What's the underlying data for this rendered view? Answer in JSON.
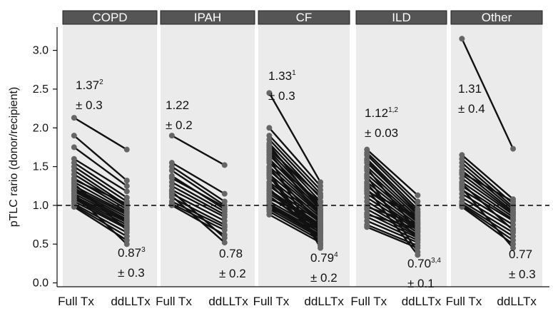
{
  "chart_data": {
    "type": "line",
    "ylabel": "pTLC rario (donor/recipient)",
    "ylim": [
      -0.05,
      3.3
    ],
    "yticks": [
      "0.0",
      "0.5",
      "1.0",
      "1.5",
      "2.0",
      "2.5",
      "3.0"
    ],
    "reference_line": 1.0,
    "categories": [
      "Full Tx",
      "ddLLTx"
    ],
    "colors": {
      "panel_header": "#555555",
      "panel_bg": "#ebebeb",
      "line": "#111111",
      "point": "#666666"
    },
    "panels": [
      {
        "title": "COPD",
        "left_label": {
          "value": "1.37",
          "sup": "2",
          "sd": "± 0.3"
        },
        "right_label": {
          "value": "0.87",
          "sup": "3",
          "sd": "± 0.3"
        },
        "pairs": [
          [
            2.13,
            1.72
          ],
          [
            1.9,
            1.32
          ],
          [
            1.75,
            1.25
          ],
          [
            1.6,
            1.18
          ],
          [
            1.55,
            1.1
          ],
          [
            1.5,
            1.05
          ],
          [
            1.45,
            1.0
          ],
          [
            1.4,
            0.98
          ],
          [
            1.35,
            0.95
          ],
          [
            1.3,
            0.92
          ],
          [
            1.25,
            0.9
          ],
          [
            1.22,
            0.88
          ],
          [
            1.2,
            0.85
          ],
          [
            1.18,
            0.82
          ],
          [
            1.15,
            0.8
          ],
          [
            1.12,
            0.78
          ],
          [
            1.1,
            0.75
          ],
          [
            1.08,
            0.72
          ],
          [
            1.05,
            0.7
          ],
          [
            1.02,
            0.65
          ],
          [
            1.0,
            0.6
          ],
          [
            0.98,
            0.55
          ],
          [
            1.15,
            0.5
          ],
          [
            1.28,
            0.68
          ],
          [
            1.33,
            1.02
          ]
        ]
      },
      {
        "title": "IPAH",
        "left_label": {
          "value": "1.22",
          "sup": "",
          "sd": "± 0.2"
        },
        "right_label": {
          "value": "0.78",
          "sup": "",
          "sd": "± 0.2"
        },
        "pairs": [
          [
            1.9,
            1.52
          ],
          [
            1.55,
            1.15
          ],
          [
            1.5,
            1.05
          ],
          [
            1.45,
            1.0
          ],
          [
            1.38,
            0.95
          ],
          [
            1.3,
            0.92
          ],
          [
            1.25,
            0.88
          ],
          [
            1.2,
            0.85
          ],
          [
            1.15,
            0.8
          ],
          [
            1.1,
            0.75
          ],
          [
            1.05,
            0.72
          ],
          [
            1.02,
            0.68
          ],
          [
            1.0,
            0.62
          ],
          [
            1.18,
            0.58
          ],
          [
            1.12,
            0.52
          ],
          [
            1.35,
            0.98
          ]
        ]
      },
      {
        "title": "CF",
        "left_label": {
          "value": "1.33",
          "sup": "1",
          "sd": "± 0.3"
        },
        "right_label": {
          "value": "0.79",
          "sup": "4",
          "sd": "± 0.2"
        },
        "pairs": [
          [
            2.45,
            1.3
          ],
          [
            2.0,
            1.25
          ],
          [
            1.9,
            1.2
          ],
          [
            1.85,
            1.15
          ],
          [
            1.8,
            1.1
          ],
          [
            1.75,
            1.05
          ],
          [
            1.7,
            1.0
          ],
          [
            1.65,
            0.98
          ],
          [
            1.6,
            0.95
          ],
          [
            1.55,
            0.92
          ],
          [
            1.5,
            0.9
          ],
          [
            1.45,
            0.88
          ],
          [
            1.4,
            0.85
          ],
          [
            1.35,
            0.82
          ],
          [
            1.3,
            0.8
          ],
          [
            1.25,
            0.78
          ],
          [
            1.2,
            0.75
          ],
          [
            1.15,
            0.72
          ],
          [
            1.1,
            0.7
          ],
          [
            1.05,
            0.68
          ],
          [
            1.02,
            0.65
          ],
          [
            1.0,
            0.62
          ],
          [
            0.98,
            0.6
          ],
          [
            0.95,
            0.58
          ],
          [
            0.92,
            0.55
          ],
          [
            0.88,
            0.52
          ],
          [
            1.42,
            0.5
          ],
          [
            1.38,
            0.48
          ],
          [
            1.62,
            0.45
          ],
          [
            1.72,
            1.12
          ],
          [
            1.68,
            0.86
          ],
          [
            1.48,
            0.76
          ],
          [
            1.28,
            0.66
          ],
          [
            1.18,
            0.74
          ],
          [
            1.08,
            0.84
          ],
          [
            1.78,
            0.94
          ],
          [
            1.58,
            1.04
          ],
          [
            1.22,
            0.56
          ],
          [
            1.12,
            0.64
          ],
          [
            0.96,
            0.7
          ]
        ]
      },
      {
        "title": "ILD",
        "left_label": {
          "value": "1.12",
          "sup": "1,2",
          "sd": "± 0.03"
        },
        "right_label": {
          "value": "0.70",
          "sup": "3,4",
          "sd": "± 0.1"
        },
        "pairs": [
          [
            1.72,
            1.13
          ],
          [
            1.68,
            1.05
          ],
          [
            1.65,
            1.0
          ],
          [
            1.6,
            0.95
          ],
          [
            1.55,
            0.92
          ],
          [
            1.5,
            0.88
          ],
          [
            1.45,
            0.85
          ],
          [
            1.4,
            0.82
          ],
          [
            1.35,
            0.8
          ],
          [
            1.3,
            0.78
          ],
          [
            1.25,
            0.75
          ],
          [
            1.2,
            0.72
          ],
          [
            1.15,
            0.7
          ],
          [
            1.1,
            0.68
          ],
          [
            1.05,
            0.65
          ],
          [
            1.0,
            0.62
          ],
          [
            0.95,
            0.6
          ],
          [
            0.9,
            0.58
          ],
          [
            0.85,
            0.55
          ],
          [
            0.8,
            0.52
          ],
          [
            0.75,
            0.48
          ],
          [
            0.72,
            0.45
          ],
          [
            1.38,
            0.4
          ],
          [
            1.22,
            0.36
          ],
          [
            1.58,
            0.9
          ],
          [
            1.48,
            0.66
          ],
          [
            1.28,
            0.56
          ],
          [
            1.18,
            0.86
          ],
          [
            0.98,
            0.76
          ],
          [
            0.88,
            0.7
          ]
        ]
      },
      {
        "title": "Other",
        "left_label": {
          "value": "1.31",
          "sup": "",
          "sd": "± 0.4"
        },
        "right_label": {
          "value": "0.77",
          "sup": "",
          "sd": "± 0.3"
        },
        "pairs": [
          [
            3.15,
            1.73
          ],
          [
            1.65,
            1.08
          ],
          [
            1.6,
            1.02
          ],
          [
            1.55,
            0.98
          ],
          [
            1.5,
            0.95
          ],
          [
            1.45,
            0.92
          ],
          [
            1.4,
            0.9
          ],
          [
            1.35,
            0.88
          ],
          [
            1.3,
            0.85
          ],
          [
            1.25,
            0.82
          ],
          [
            1.2,
            0.8
          ],
          [
            1.15,
            0.75
          ],
          [
            1.1,
            0.7
          ],
          [
            1.05,
            0.65
          ],
          [
            1.02,
            0.6
          ],
          [
            1.0,
            0.55
          ],
          [
            0.98,
            0.5
          ],
          [
            1.22,
            0.45
          ],
          [
            1.28,
            0.68
          ],
          [
            1.42,
            1.05
          ]
        ]
      }
    ]
  }
}
